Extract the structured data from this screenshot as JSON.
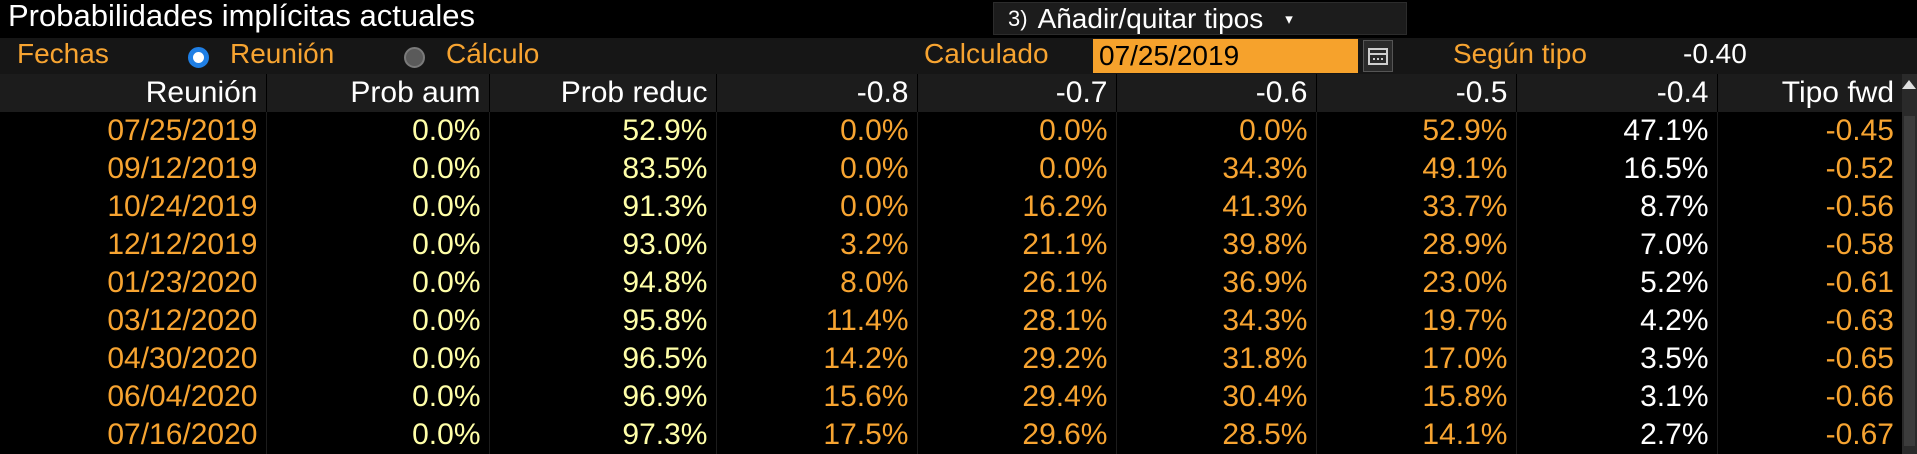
{
  "header": {
    "title": "Probabilidades implícitas actuales",
    "dropdown_number": "3)",
    "dropdown_label": "Añadir/quitar tipos",
    "dropdown_caret": "▾"
  },
  "controls": {
    "fechas_label": "Fechas",
    "radio_meeting_label": "Reunión",
    "radio_calc_label": "Cálculo",
    "calculated_label": "Calculado",
    "calculated_date": "07/25/2019",
    "rate_label": "Según tipo",
    "rate_value": "-0.40"
  },
  "table": {
    "headers": [
      "Reunión",
      "Prob aum",
      "Prob reduc",
      "-0.8",
      "-0.7",
      "-0.6",
      "-0.5",
      "-0.4",
      "Tipo fwd"
    ],
    "sort_indicator": "▲",
    "rows": [
      [
        "07/25/2019",
        "0.0%",
        "52.9%",
        "0.0%",
        "0.0%",
        "0.0%",
        "52.9%",
        "47.1%",
        "-0.45"
      ],
      [
        "09/12/2019",
        "0.0%",
        "83.5%",
        "0.0%",
        "0.0%",
        "34.3%",
        "49.1%",
        "16.5%",
        "-0.52"
      ],
      [
        "10/24/2019",
        "0.0%",
        "91.3%",
        "0.0%",
        "16.2%",
        "41.3%",
        "33.7%",
        "8.7%",
        "-0.56"
      ],
      [
        "12/12/2019",
        "0.0%",
        "93.0%",
        "3.2%",
        "21.1%",
        "39.8%",
        "28.9%",
        "7.0%",
        "-0.58"
      ],
      [
        "01/23/2020",
        "0.0%",
        "94.8%",
        "8.0%",
        "26.1%",
        "36.9%",
        "23.0%",
        "5.2%",
        "-0.61"
      ],
      [
        "03/12/2020",
        "0.0%",
        "95.8%",
        "11.4%",
        "28.1%",
        "34.3%",
        "19.7%",
        "4.2%",
        "-0.63"
      ],
      [
        "04/30/2020",
        "0.0%",
        "96.5%",
        "14.2%",
        "29.2%",
        "31.8%",
        "17.0%",
        "3.5%",
        "-0.65"
      ],
      [
        "06/04/2020",
        "0.0%",
        "96.9%",
        "15.6%",
        "29.4%",
        "30.4%",
        "15.8%",
        "3.1%",
        "-0.66"
      ],
      [
        "07/16/2020",
        "0.0%",
        "97.3%",
        "17.5%",
        "29.6%",
        "28.5%",
        "14.1%",
        "2.7%",
        "-0.67"
      ]
    ]
  },
  "colors": {
    "accent_orange": "#f7a431",
    "value_yellow": "#ffffa8",
    "radio_selected": "#1f7fe5",
    "background": "#000000"
  }
}
